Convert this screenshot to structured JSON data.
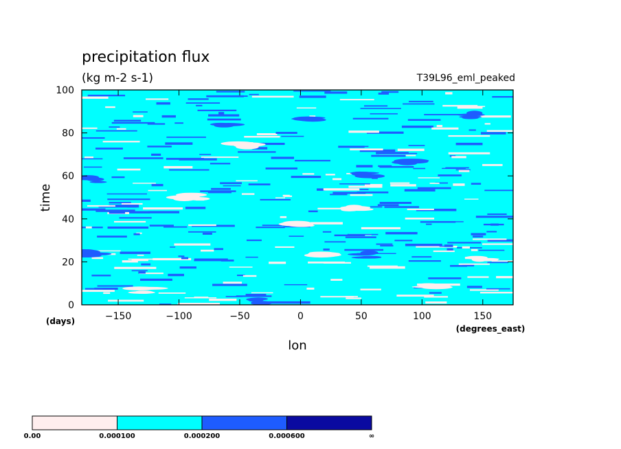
{
  "chart_data": {
    "type": "heatmap",
    "title": "precipitation flux",
    "units": "(kg m-2 s-1)",
    "run_label": "T39L96_eml_peaked",
    "xlabel": "lon",
    "x_units": "(degrees_east)",
    "ylabel": "time",
    "y_units": "(days)",
    "xlim": [
      -180,
      175
    ],
    "ylim": [
      0,
      100
    ],
    "x_ticks": [
      -150,
      -100,
      -50,
      0,
      50,
      100,
      150
    ],
    "y_ticks": [
      0,
      20,
      40,
      60,
      80,
      100
    ],
    "colorbar": {
      "levels": [
        "0.00",
        "0.000100",
        "0.000200",
        "0.000600",
        "∞"
      ],
      "colors": [
        "#ffeeee",
        "#00ffff",
        "#1e5cff",
        "#0a0aa0"
      ]
    },
    "dominant_class": "0.000100–0.000200",
    "features": [
      {
        "class": "0.000200–0.000600",
        "lon": -172,
        "time": 58
      },
      {
        "class": "0.000200–0.000600",
        "lon": 55,
        "time": 61
      },
      {
        "class": "0.000200–0.000600",
        "lon": 85,
        "time": 66
      },
      {
        "class": "0.000200–0.000600",
        "lon": -175,
        "time": 24
      },
      {
        "class": "0.000200–0.000600",
        "lon": 55,
        "time": 23
      },
      {
        "class": "0.000200–0.000600",
        "lon": 5,
        "time": 87
      },
      {
        "class": "0.000200–0.000600",
        "lon": 140,
        "time": 88
      },
      {
        "class": "0.000200–0.000600",
        "lon": -60,
        "time": 84
      },
      {
        "class": "0.000200–0.000600",
        "lon": -38,
        "time": 2
      },
      {
        "class": "0.00–0.000100",
        "lon": -45,
        "time": 74
      },
      {
        "class": "0.00–0.000100",
        "lon": 0,
        "time": 38
      },
      {
        "class": "0.00–0.000100",
        "lon": 110,
        "time": 9
      },
      {
        "class": "0.00–0.000100",
        "lon": 20,
        "time": 24
      },
      {
        "class": "0.00–0.000100",
        "lon": -90,
        "time": 50
      },
      {
        "class": "0.00–0.000100",
        "lon": 150,
        "time": 21
      },
      {
        "class": "0.00–0.000100",
        "lon": 45,
        "time": 45
      },
      {
        "class": "0.00–0.000100",
        "lon": -130,
        "time": 7
      }
    ]
  }
}
